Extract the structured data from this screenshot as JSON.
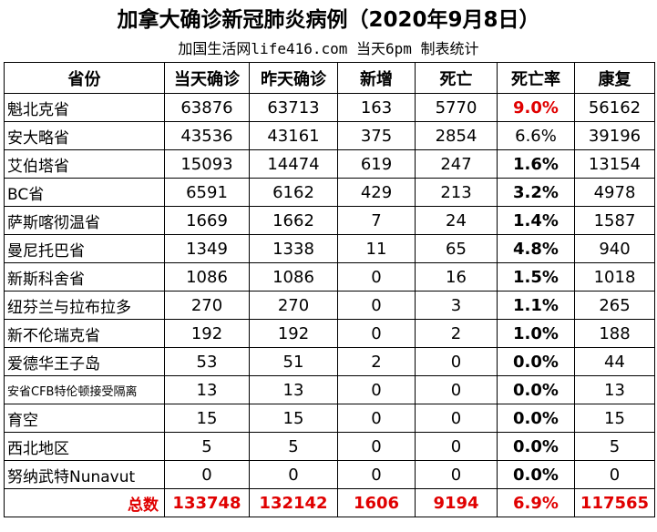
{
  "header": {
    "title": "加拿大确诊新冠肺炎病例（2020年9月8日）",
    "subtitle": "加国生活网life416.com 当天6pm 制表统计"
  },
  "table": {
    "columns": [
      "省份",
      "当天确诊",
      "昨天确诊",
      "新增",
      "死亡",
      "死亡率",
      "康复"
    ],
    "rows": [
      [
        "魁北克省",
        "63876",
        "63713",
        "163",
        "5770",
        "9.0%",
        "56162"
      ],
      [
        "安大略省",
        "43536",
        "43161",
        "375",
        "2854",
        "6.6%",
        "39196"
      ],
      [
        "艾伯塔省",
        "15093",
        "14474",
        "619",
        "247",
        "1.6%",
        "13154"
      ],
      [
        "BC省",
        "6591",
        "6162",
        "429",
        "213",
        "3.2%",
        "4978"
      ],
      [
        "萨斯喀彻温省",
        "1669",
        "1662",
        "7",
        "24",
        "1.4%",
        "1587"
      ],
      [
        "曼尼托巴省",
        "1349",
        "1338",
        "11",
        "65",
        "4.8%",
        "940"
      ],
      [
        "新斯科舍省",
        "1086",
        "1086",
        "0",
        "16",
        "1.5%",
        "1018"
      ],
      [
        "纽芬兰与拉布拉多",
        "270",
        "270",
        "0",
        "3",
        "1.1%",
        "265"
      ],
      [
        "新不伦瑞克省",
        "192",
        "192",
        "0",
        "2",
        "1.0%",
        "188"
      ],
      [
        "爱德华王子岛",
        "53",
        "51",
        "2",
        "0",
        "0.0%",
        "44"
      ],
      [
        "安省CFB特伦顿接受隔离",
        "13",
        "13",
        "0",
        "0",
        "0.0%",
        "13"
      ],
      [
        "育空",
        "15",
        "15",
        "0",
        "0",
        "0.0%",
        "15"
      ],
      [
        "西北地区",
        "5",
        "5",
        "0",
        "0",
        "0.0%",
        "5"
      ],
      [
        "努纳武特Nunavut",
        "0",
        "0",
        "0",
        "0",
        "0.0%",
        "0"
      ]
    ],
    "total": [
      "总数",
      "133748",
      "132142",
      "1606",
      "9194",
      "6.9%",
      "117565"
    ]
  }
}
